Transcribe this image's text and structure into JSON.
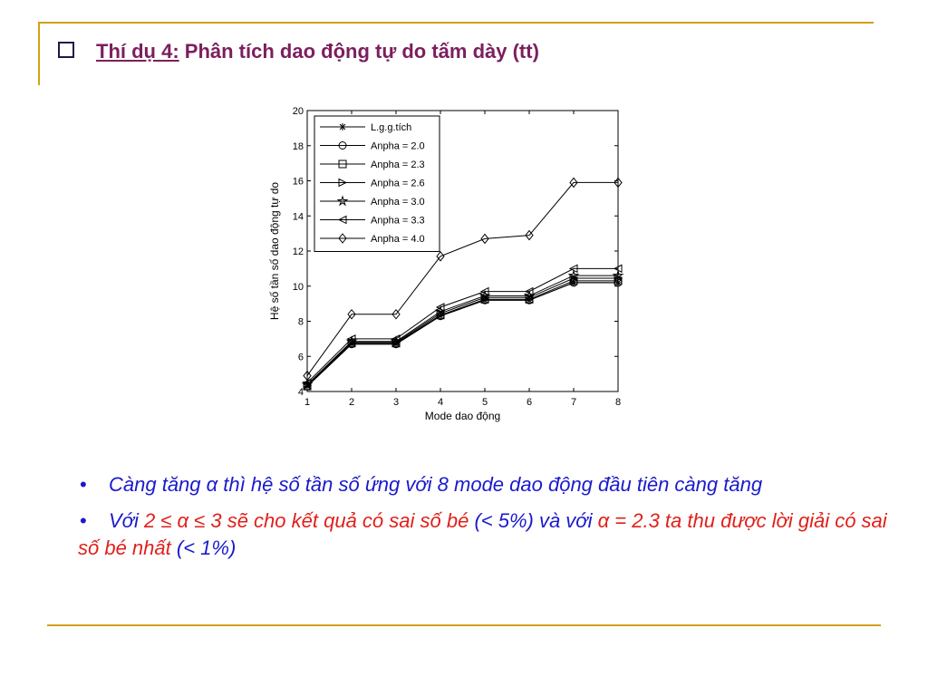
{
  "slide": {
    "title_label": "Thí dụ 4:",
    "title_text": "Phân tích dao động tự do tấm dày (tt)",
    "bullets": [
      {
        "symbol": "•",
        "text": "Càng tăng α thì hệ số tần số ứng với 8 mode dao động đầu tiên càng tăng"
      },
      {
        "symbol": "•",
        "seg1": "Với ",
        "seg2": "2 ≤ α ≤ 3 sẽ cho kết quả có sai số bé",
        "seg3": " (< 5%) và với ",
        "seg4": "α = 2.3 ta thu được lời giải có sai số bé nhất",
        "seg5": " (< 1%)"
      }
    ]
  },
  "chart_data": {
    "type": "line",
    "x": [
      1,
      2,
      3,
      4,
      5,
      6,
      7,
      8
    ],
    "xlabel": "Mode dao động",
    "ylabel": "Hệ số tần số dao động tự do",
    "xlim": [
      1,
      8
    ],
    "ylim": [
      4,
      20
    ],
    "xticks": [
      1,
      2,
      3,
      4,
      5,
      6,
      7,
      8
    ],
    "yticks": [
      4,
      6,
      8,
      10,
      12,
      14,
      16,
      18,
      20
    ],
    "grid": false,
    "legend_position": "top-left",
    "series": [
      {
        "name": "L.g.g.tích",
        "marker": "asterisk",
        "values": [
          4.3,
          6.7,
          6.7,
          8.3,
          9.2,
          9.2,
          10.2,
          10.2
        ]
      },
      {
        "name": "Anpha = 2.0",
        "marker": "circle",
        "values": [
          4.3,
          6.7,
          6.7,
          8.3,
          9.2,
          9.2,
          10.2,
          10.2
        ]
      },
      {
        "name": "Anpha = 2.3",
        "marker": "square",
        "values": [
          4.3,
          6.75,
          6.75,
          8.35,
          9.25,
          9.25,
          10.3,
          10.3
        ]
      },
      {
        "name": "Anpha = 2.6",
        "marker": "triangle-right",
        "values": [
          4.35,
          6.8,
          6.8,
          8.45,
          9.35,
          9.35,
          10.45,
          10.45
        ]
      },
      {
        "name": "Anpha = 3.0",
        "marker": "star",
        "values": [
          4.4,
          6.85,
          6.85,
          8.55,
          9.45,
          9.45,
          10.6,
          10.6
        ]
      },
      {
        "name": "Anpha = 3.3",
        "marker": "triangle-left",
        "values": [
          4.5,
          7.0,
          7.0,
          8.8,
          9.7,
          9.7,
          11.0,
          11.0
        ]
      },
      {
        "name": "Anpha = 4.0",
        "marker": "diamond",
        "values": [
          4.9,
          8.4,
          8.4,
          11.7,
          12.7,
          12.9,
          15.9,
          15.9
        ]
      }
    ]
  }
}
